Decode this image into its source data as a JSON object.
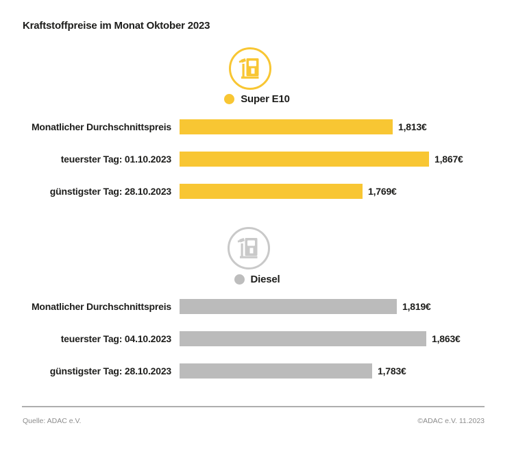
{
  "title": "Kraftstoffpreise im Monat Oktober 2023",
  "colors": {
    "super_e10_yellow": "#F8C633",
    "diesel_bar_gray": "#BBBBBB",
    "diesel_icon_gray": "#C9C9C9",
    "text_dark": "#1D1D1B",
    "footer_gray": "#8C8C8C"
  },
  "chart_data": {
    "type": "bar",
    "orientation": "horizontal",
    "title": "Kraftstoffpreise im Monat Oktober 2023",
    "unit": "€",
    "xlim": [
      1.5,
      1.9
    ],
    "grid": false,
    "value_axis_visible": false,
    "sections": [
      {
        "legend_label": "Super E10",
        "icon": "fuel-pump-icon",
        "color": "#F8C633",
        "rows": [
          {
            "label": "Monatlicher Durchschnittspreis",
            "value": 1.813,
            "value_label": "1,813€"
          },
          {
            "label": "teuerster Tag: 01.10.2023",
            "value": 1.867,
            "value_label": "1,867€"
          },
          {
            "label": "günstigster Tag: 28.10.2023",
            "value": 1.769,
            "value_label": "1,769€"
          }
        ]
      },
      {
        "legend_label": "Diesel",
        "icon": "fuel-pump-icon",
        "color": "#BBBBBB",
        "rows": [
          {
            "label": "Monatlicher Durchschnittspreis",
            "value": 1.819,
            "value_label": "1,819€"
          },
          {
            "label": "teuerster Tag: 04.10.2023",
            "value": 1.863,
            "value_label": "1,863€"
          },
          {
            "label": "günstigster Tag: 28.10.2023",
            "value": 1.783,
            "value_label": "1,783€"
          }
        ]
      }
    ]
  },
  "footer": {
    "source": "Quelle: ADAC e.V.",
    "copyright": "©ADAC e.V. 11.2023"
  }
}
